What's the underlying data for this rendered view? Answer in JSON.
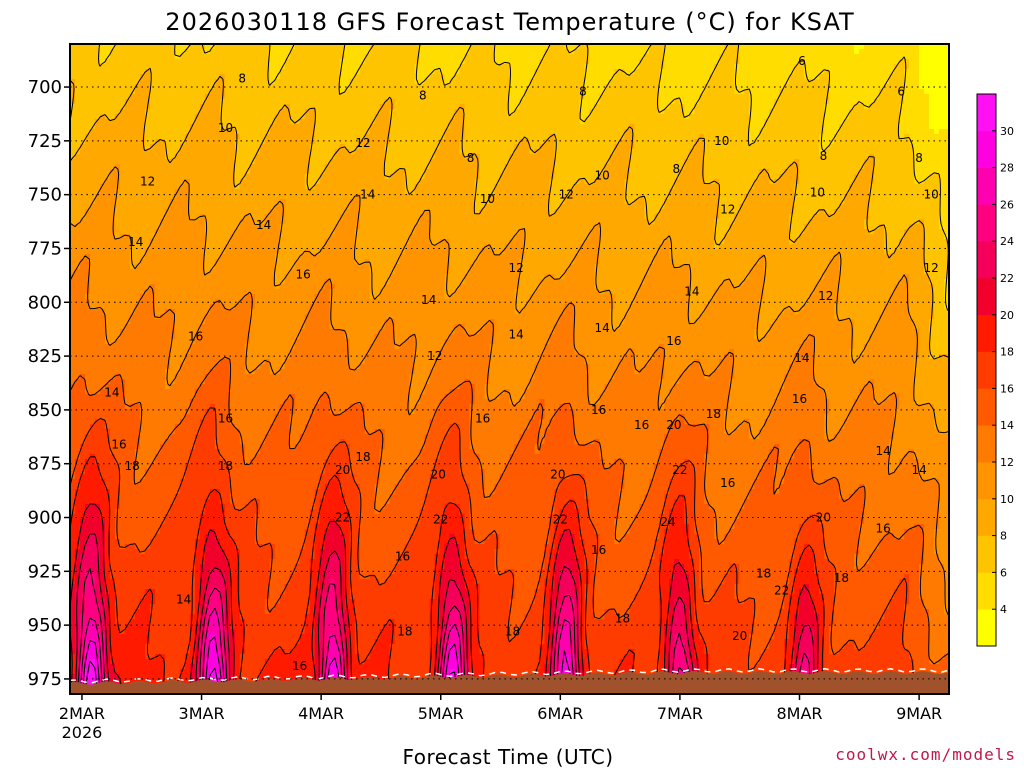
{
  "chart_data": {
    "type": "heatmap",
    "title": "2026030118 GFS Forecast Temperature (°C) for KSAT",
    "xlabel": "Forecast Time (UTC)",
    "ylabel": "",
    "credit": "coolwx.com/models",
    "credit_color": "#c0184a",
    "y_axis": {
      "range": [
        680,
        982
      ],
      "ticks": [
        700,
        725,
        750,
        775,
        800,
        825,
        850,
        875,
        900,
        925,
        950,
        975
      ],
      "inverted": true,
      "gridlines": "dotted"
    },
    "x_axis": {
      "range": [
        -0.1,
        7.25
      ],
      "ticks": [
        {
          "x": 0,
          "label": "2MAR",
          "sublabel": "2026"
        },
        {
          "x": 1,
          "label": "3MAR",
          "sublabel": ""
        },
        {
          "x": 2,
          "label": "4MAR",
          "sublabel": ""
        },
        {
          "x": 3,
          "label": "5MAR",
          "sublabel": ""
        },
        {
          "x": 4,
          "label": "6MAR",
          "sublabel": ""
        },
        {
          "x": 5,
          "label": "7MAR",
          "sublabel": ""
        },
        {
          "x": 6,
          "label": "8MAR",
          "sublabel": ""
        },
        {
          "x": 7,
          "label": "9MAR",
          "sublabel": ""
        }
      ]
    },
    "colorbar": {
      "levels": [
        2,
        4,
        6,
        8,
        10,
        12,
        14,
        16,
        18,
        20,
        22,
        24,
        26,
        28,
        30,
        32
      ],
      "tick_labels": [
        "4",
        "6",
        "8",
        "10",
        "12",
        "14",
        "16",
        "18",
        "20",
        "22",
        "24",
        "26",
        "28",
        "30"
      ],
      "colors": [
        "#ffff00",
        "#ffdd00",
        "#ffc400",
        "#ffa800",
        "#ff9400",
        "#ff7a00",
        "#ff5a00",
        "#ff3c00",
        "#ff1a00",
        "#f0002a",
        "#f4005a",
        "#ff0080",
        "#ff00b0",
        "#ff00e0",
        "#ff10f4"
      ]
    },
    "ground_color": "#a0522d",
    "isotherm_labels": [
      {
        "x": 1.34,
        "p": 696,
        "t": "8"
      },
      {
        "x": 2.85,
        "p": 704,
        "t": "8"
      },
      {
        "x": 4.19,
        "p": 702,
        "t": "8"
      },
      {
        "x": 6.02,
        "p": 688,
        "t": "6"
      },
      {
        "x": 6.85,
        "p": 702,
        "t": "6"
      },
      {
        "x": 1.2,
        "p": 719,
        "t": "10"
      },
      {
        "x": 3.25,
        "p": 733,
        "t": "8"
      },
      {
        "x": 4.97,
        "p": 738,
        "t": "8"
      },
      {
        "x": 6.2,
        "p": 732,
        "t": "8"
      },
      {
        "x": 7.0,
        "p": 733,
        "t": "8"
      },
      {
        "x": 2.35,
        "p": 726,
        "t": "12"
      },
      {
        "x": 4.35,
        "p": 741,
        "t": "10"
      },
      {
        "x": 5.35,
        "p": 725,
        "t": "10"
      },
      {
        "x": 6.15,
        "p": 749,
        "t": "10"
      },
      {
        "x": 7.1,
        "p": 750,
        "t": "10"
      },
      {
        "x": 0.55,
        "p": 744,
        "t": "12"
      },
      {
        "x": 2.39,
        "p": 750,
        "t": "14"
      },
      {
        "x": 3.39,
        "p": 752,
        "t": "10"
      },
      {
        "x": 4.05,
        "p": 750,
        "t": "12"
      },
      {
        "x": 5.4,
        "p": 757,
        "t": "12"
      },
      {
        "x": 1.52,
        "p": 764,
        "t": "14"
      },
      {
        "x": 0.45,
        "p": 772,
        "t": "14"
      },
      {
        "x": 3.63,
        "p": 784,
        "t": "12"
      },
      {
        "x": 6.22,
        "p": 797,
        "t": "12"
      },
      {
        "x": 7.1,
        "p": 784,
        "t": "12"
      },
      {
        "x": 1.85,
        "p": 787,
        "t": "16"
      },
      {
        "x": 2.9,
        "p": 799,
        "t": "14"
      },
      {
        "x": 5.1,
        "p": 795,
        "t": "14"
      },
      {
        "x": 4.35,
        "p": 812,
        "t": "14"
      },
      {
        "x": 3.63,
        "p": 815,
        "t": "14"
      },
      {
        "x": 0.95,
        "p": 816,
        "t": "16"
      },
      {
        "x": 2.95,
        "p": 825,
        "t": "12"
      },
      {
        "x": 4.95,
        "p": 818,
        "t": "16"
      },
      {
        "x": 6.02,
        "p": 826,
        "t": "14"
      },
      {
        "x": 0.25,
        "p": 842,
        "t": "14"
      },
      {
        "x": 1.2,
        "p": 854,
        "t": "16"
      },
      {
        "x": 3.35,
        "p": 854,
        "t": "16"
      },
      {
        "x": 4.32,
        "p": 850,
        "t": "16"
      },
      {
        "x": 4.68,
        "p": 857,
        "t": "16"
      },
      {
        "x": 5.28,
        "p": 852,
        "t": "18"
      },
      {
        "x": 6.0,
        "p": 845,
        "t": "16"
      },
      {
        "x": 6.7,
        "p": 869,
        "t": "14"
      },
      {
        "x": 0.31,
        "p": 866,
        "t": "16"
      },
      {
        "x": 2.35,
        "p": 872,
        "t": "18"
      },
      {
        "x": 4.95,
        "p": 857,
        "t": "20"
      },
      {
        "x": 0.42,
        "p": 876,
        "t": "18"
      },
      {
        "x": 1.2,
        "p": 876,
        "t": "18"
      },
      {
        "x": 2.18,
        "p": 878,
        "t": "20"
      },
      {
        "x": 2.98,
        "p": 880,
        "t": "20"
      },
      {
        "x": 3.98,
        "p": 880,
        "t": "20"
      },
      {
        "x": 5.0,
        "p": 878,
        "t": "22"
      },
      {
        "x": 5.4,
        "p": 884,
        "t": "16"
      },
      {
        "x": 7.0,
        "p": 878,
        "t": "14"
      },
      {
        "x": 2.18,
        "p": 900,
        "t": "22"
      },
      {
        "x": 3.0,
        "p": 901,
        "t": "22"
      },
      {
        "x": 4.0,
        "p": 901,
        "t": "22"
      },
      {
        "x": 4.9,
        "p": 902,
        "t": "24"
      },
      {
        "x": 6.2,
        "p": 900,
        "t": "20"
      },
      {
        "x": 6.7,
        "p": 905,
        "t": "16"
      },
      {
        "x": 2.68,
        "p": 918,
        "t": "16"
      },
      {
        "x": 4.32,
        "p": 915,
        "t": "16"
      },
      {
        "x": 5.7,
        "p": 926,
        "t": "18"
      },
      {
        "x": 5.85,
        "p": 934,
        "t": "22"
      },
      {
        "x": 6.35,
        "p": 928,
        "t": "18"
      },
      {
        "x": 0.85,
        "p": 938,
        "t": "14"
      },
      {
        "x": 2.7,
        "p": 953,
        "t": "18"
      },
      {
        "x": 3.6,
        "p": 953,
        "t": "18"
      },
      {
        "x": 4.52,
        "p": 947,
        "t": "18"
      },
      {
        "x": 5.5,
        "p": 955,
        "t": "20"
      },
      {
        "x": 1.82,
        "p": 969,
        "t": "16"
      }
    ]
  }
}
